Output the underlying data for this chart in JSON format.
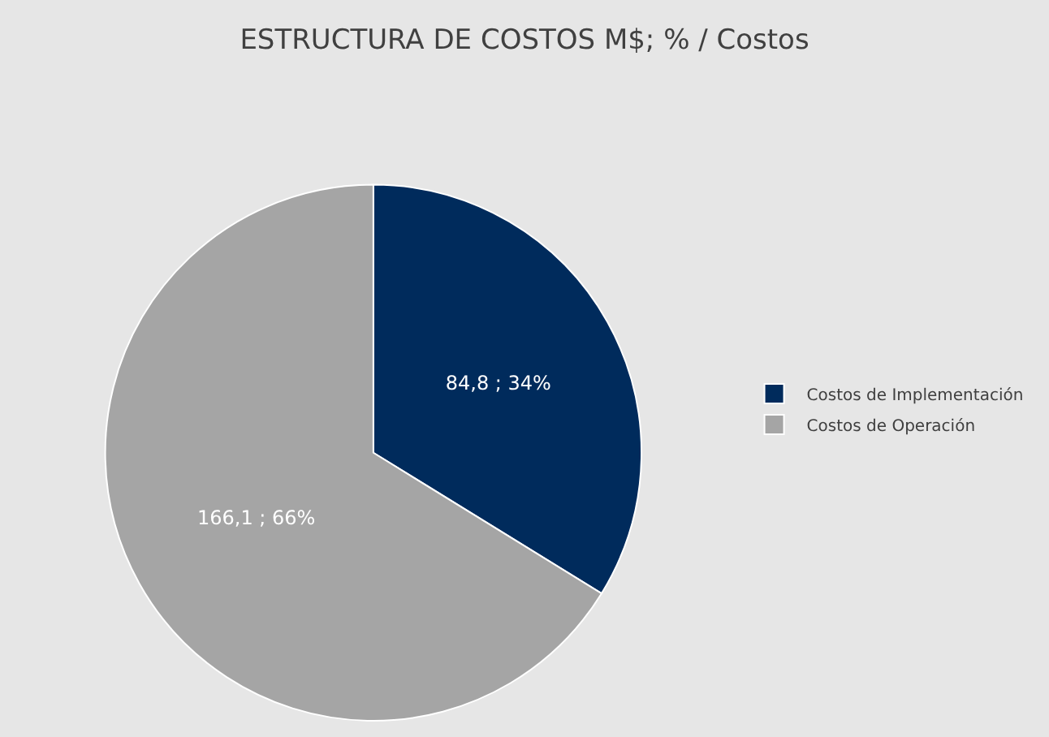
{
  "chart_data": {
    "type": "pie",
    "title": "ESTRUCTURA DE COSTOS M$; % / Costos",
    "categories": [
      "Costos de Implementación",
      "Costos de Operación"
    ],
    "values": [
      84.8,
      166.1
    ],
    "colors": [
      "#002b5c",
      "#a5a5a5"
    ],
    "value_labels": [
      "84,8 ; 34%",
      "166,1 ; 66%"
    ],
    "legend": "right"
  }
}
